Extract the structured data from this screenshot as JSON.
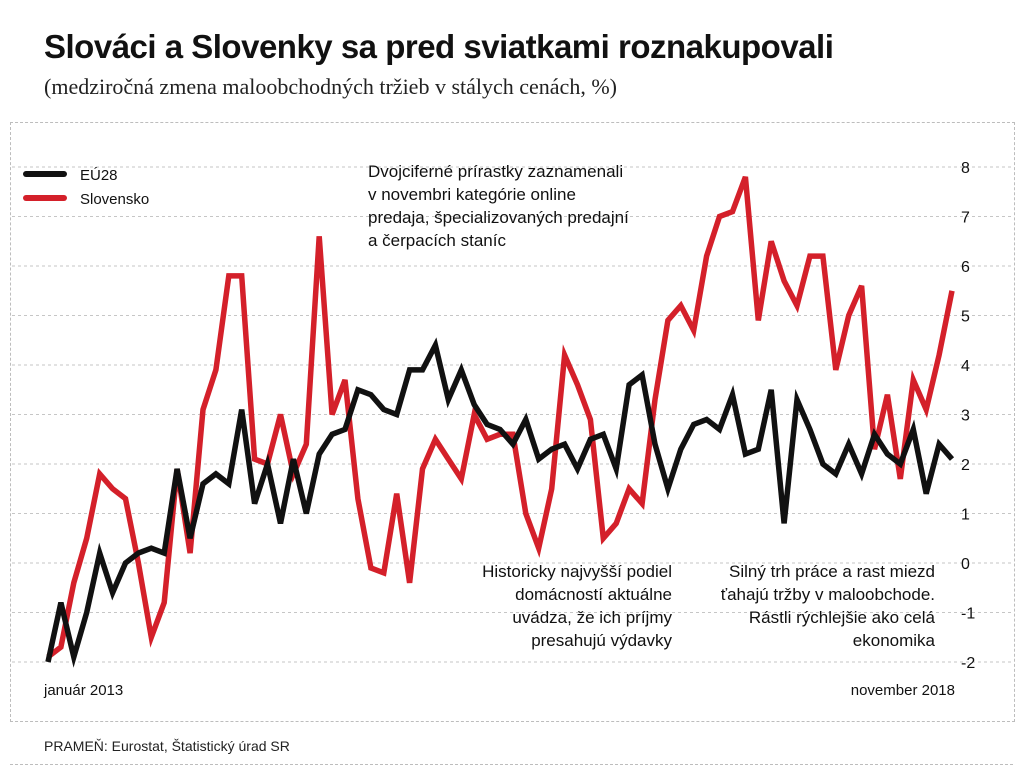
{
  "header": {
    "title": "Slováci a Slovenky sa pred sviatkami roznakupovali",
    "subtitle": "(medziročná zmena maloobchodných tržieb v stálych cenách, %)"
  },
  "annotations": {
    "top": "Dvojciferné prírastky zaznamenali\nv novembri kategórie online\npredaja, špecializovaných predajní\na čerpacích staníc",
    "middle": "Historicky najvyšší podiel\ndomácností aktuálne\nuvádza, že ich príjmy\npresahujú výdavky",
    "right": "Silný trh práce a rast miezd\nťahajú tržby v maloobchode.\nRástli rýchlejšie ako celá\nekonomika"
  },
  "source": "PRAMEŇ: Eurostat, Štatistický úrad SR",
  "colors": {
    "eu": "#111111",
    "sk": "#d4202a",
    "text": "#111111"
  },
  "chart_data": {
    "type": "line",
    "title": "Slováci a Slovenky sa pred sviatkami roznakupovali",
    "ylabel": "medziročná zmena maloobchodných tržieb v stálych cenách, %",
    "xlabel": "",
    "x_start_label": "január 2013",
    "x_end_label": "november 2018",
    "ylim": [
      -2,
      8
    ],
    "yticks": [
      8,
      7,
      6,
      5,
      4,
      3,
      2,
      1,
      0,
      -1,
      -2
    ],
    "ytick_labels": [
      "8",
      "7",
      "6",
      "5",
      "4",
      "3",
      "2",
      "1",
      "0",
      "-1",
      "-2"
    ],
    "legend_position": "top-left",
    "series": [
      {
        "name": "EÚ28",
        "values": [
          -2.0,
          -0.8,
          -1.9,
          -1.0,
          0.2,
          -0.6,
          0.0,
          0.2,
          0.3,
          0.2,
          1.9,
          0.5,
          1.6,
          1.8,
          1.6,
          3.1,
          1.2,
          2.0,
          0.8,
          2.1,
          1.0,
          2.2,
          2.6,
          2.7,
          3.5,
          3.4,
          3.1,
          3.0,
          3.9,
          3.9,
          4.4,
          3.3,
          3.9,
          3.2,
          2.8,
          2.7,
          2.4,
          2.9,
          2.1,
          2.3,
          2.4,
          1.9,
          2.5,
          2.6,
          1.9,
          3.6,
          3.8,
          2.4,
          1.5,
          2.3,
          2.8,
          2.9,
          2.7,
          3.4,
          2.2,
          2.3,
          3.5,
          0.8,
          3.3,
          2.7,
          2.0,
          1.8,
          2.4,
          1.8,
          2.6,
          2.2,
          2.0,
          2.7,
          1.4,
          2.4,
          2.1
        ],
        "color": "#111111"
      },
      {
        "name": "Slovensko",
        "values": [
          -1.9,
          -1.7,
          -0.4,
          0.5,
          1.8,
          1.5,
          1.3,
          0.0,
          -1.5,
          -0.8,
          1.9,
          0.2,
          3.1,
          3.9,
          5.8,
          5.8,
          2.1,
          2.0,
          3.0,
          1.8,
          2.4,
          6.6,
          3.0,
          3.7,
          1.3,
          -0.1,
          -0.2,
          1.4,
          -0.4,
          1.9,
          2.5,
          2.1,
          1.7,
          3.0,
          2.5,
          2.6,
          2.6,
          1.0,
          0.3,
          1.5,
          4.2,
          3.6,
          2.9,
          0.5,
          0.8,
          1.5,
          1.2,
          3.3,
          4.9,
          5.2,
          4.7,
          6.2,
          7.0,
          7.1,
          7.8,
          4.9,
          6.5,
          5.7,
          5.2,
          6.2,
          6.2,
          3.9,
          5.0,
          5.6,
          2.3,
          3.4,
          1.7,
          3.7,
          3.1,
          4.2,
          5.5
        ],
        "color": "#d4202a"
      }
    ]
  }
}
